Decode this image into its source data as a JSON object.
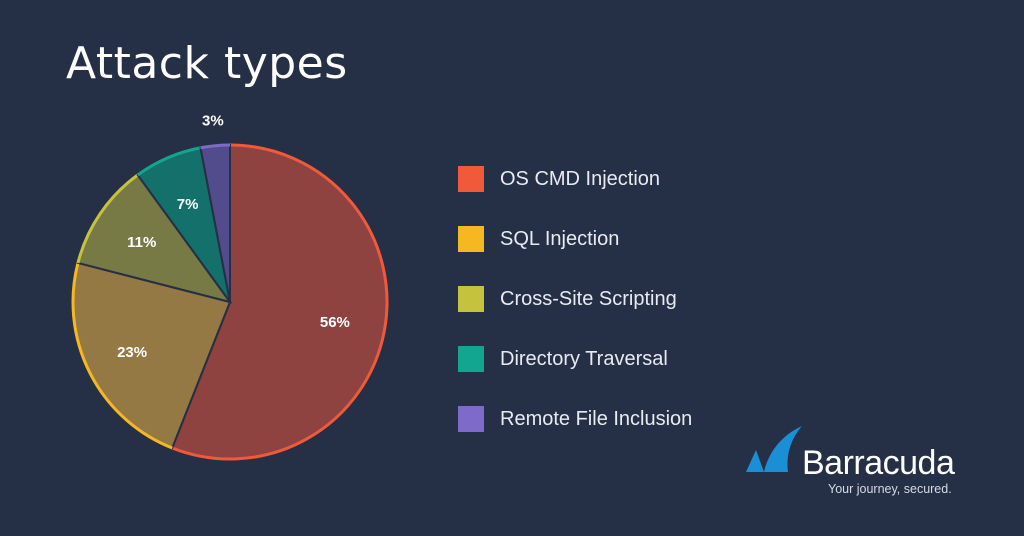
{
  "title": "Attack types",
  "chart_data": {
    "type": "pie",
    "slices": [
      {
        "label": "OS CMD Injection",
        "value": 56,
        "value_label": "56%",
        "color": "#f05a3a",
        "fill": "#8e4340"
      },
      {
        "label": "SQL Injection",
        "value": 23,
        "value_label": "23%",
        "color": "#f5b820",
        "fill": "#947944"
      },
      {
        "label": "Cross-Site Scripting",
        "value": 11,
        "value_label": "11%",
        "color": "#c5c33e",
        "fill": "#777a45"
      },
      {
        "label": "Directory Traversal",
        "value": 7,
        "value_label": "7%",
        "color": "#12a590",
        "fill": "#14706b"
      },
      {
        "label": "Remote File Inclusion",
        "value": 3,
        "value_label": "3%",
        "color": "#7d6ac9",
        "fill": "#534c8c"
      }
    ],
    "legend_position": "right"
  },
  "brand": {
    "name": "Barracuda",
    "tagline": "Your journey, secured.",
    "color": "#1a8fd6"
  }
}
